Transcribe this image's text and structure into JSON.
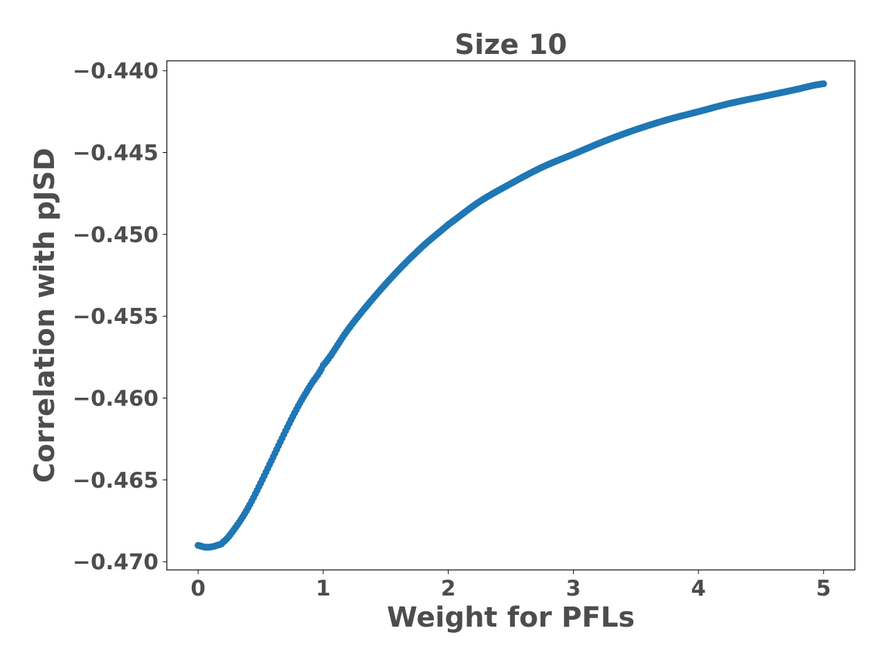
{
  "chart_data": {
    "type": "scatter",
    "title": "Size 10",
    "xlabel": "Weight for PFLs",
    "ylabel": "Correlation with pJSD",
    "xlim": [
      -0.25,
      5.25
    ],
    "ylim": [
      -0.4705,
      -0.4394
    ],
    "xticks": [
      0,
      1,
      2,
      3,
      4,
      5
    ],
    "xtick_labels": [
      "0",
      "1",
      "2",
      "3",
      "4",
      "5"
    ],
    "yticks": [
      -0.44,
      -0.445,
      -0.45,
      -0.455,
      -0.46,
      -0.465,
      -0.47
    ],
    "ytick_labels": [
      "−0.440",
      "−0.445",
      "−0.450",
      "−0.455",
      "−0.460",
      "−0.465",
      "−0.470"
    ],
    "grid": false,
    "legend": "none",
    "series": [
      {
        "color": "#1f77b4",
        "x": [
          0,
          0.05,
          0.1,
          0.15,
          0.2,
          0.3,
          0.4,
          0.5,
          0.6,
          0.7,
          0.8,
          0.9,
          1.0,
          1.2,
          1.4,
          1.6,
          1.8,
          2.0,
          2.25,
          2.5,
          2.75,
          3.0,
          3.25,
          3.5,
          3.75,
          4.0,
          4.25,
          4.5,
          4.75,
          5.0
        ],
        "y": [
          -0.469,
          -0.4691,
          -0.4691,
          -0.469,
          -0.4688,
          -0.4679,
          -0.4667,
          -0.4652,
          -0.4636,
          -0.462,
          -0.4605,
          -0.4592,
          -0.458,
          -0.4558,
          -0.4539,
          -0.4522,
          -0.4507,
          -0.4494,
          -0.448,
          -0.4469,
          -0.4459,
          -0.4451,
          -0.4443,
          -0.4436,
          -0.443,
          -0.4425,
          -0.442,
          -0.4416,
          -0.4412,
          -0.4408
        ]
      }
    ]
  }
}
